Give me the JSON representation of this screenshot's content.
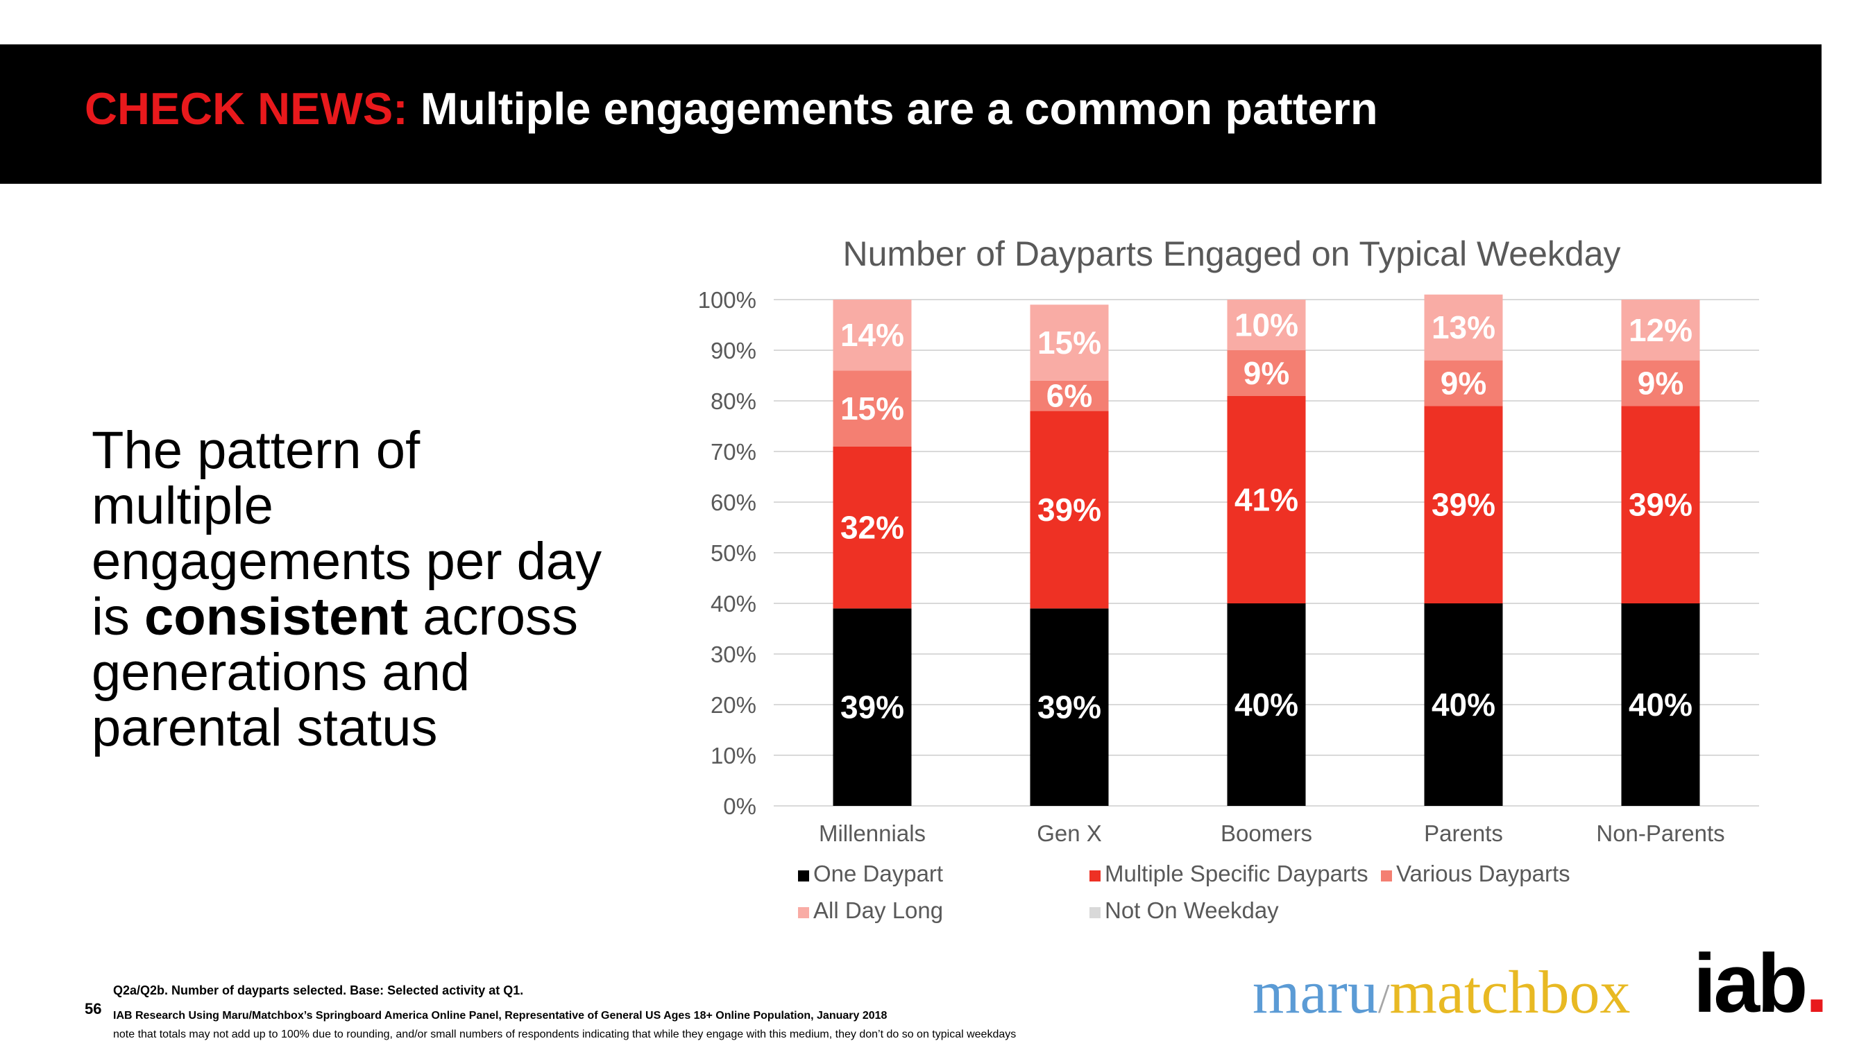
{
  "header": {
    "accent": "CHECK NEWS:",
    "title": " Multiple engagements are a common pattern"
  },
  "takeaway": {
    "before": "The pattern of multiple engagements per day is ",
    "emphasis": "consistent",
    "after": " across generations and parental status"
  },
  "footer": {
    "page_number": "56",
    "note1": "Q2a/Q2b. Number of dayparts selected. Base: Selected activity at Q1.",
    "note2": "IAB Research Using Maru/Matchbox’s Springboard America Online Panel, Representative of General US Ages 18+ Online Population, January 2018",
    "note3": "note that totals may not add up to 100% due to rounding, and/or small numbers of respondents indicating that while they engage with this medium, they don’t do so on typical weekdays"
  },
  "logos": {
    "maru": "maru",
    "slash": "/",
    "matchbox": "matchbox",
    "iab": "iab",
    "iab_dot": "."
  },
  "chart_data": {
    "type": "bar",
    "stacked": true,
    "title": "Number of Dayparts Engaged on Typical Weekday",
    "categories": [
      "Millennials",
      "Gen X",
      "Boomers",
      "Parents",
      "Non-Parents"
    ],
    "ylim": [
      0,
      100
    ],
    "yticks": [
      "0%",
      "10%",
      "20%",
      "30%",
      "40%",
      "50%",
      "60%",
      "70%",
      "80%",
      "90%",
      "100%"
    ],
    "grid": true,
    "legend_position": "bottom",
    "series": [
      {
        "name": "One Daypart",
        "color": "#000000",
        "values": [
          39,
          39,
          40,
          40,
          40
        ],
        "labels": [
          "39%",
          "39%",
          "40%",
          "40%",
          "40%"
        ]
      },
      {
        "name": "Multiple Specific Dayparts",
        "color": "#ee3124",
        "values": [
          32,
          39,
          41,
          39,
          39
        ],
        "labels": [
          "32%",
          "39%",
          "41%",
          "39%",
          "39%"
        ]
      },
      {
        "name": "Various Dayparts",
        "color": "#f47f72",
        "values": [
          15,
          6,
          9,
          9,
          9
        ],
        "labels": [
          "15%",
          "6%",
          "9%",
          "9%",
          "9%"
        ]
      },
      {
        "name": "All Day Long",
        "color": "#f9aca5",
        "values": [
          14,
          15,
          10,
          13,
          12
        ],
        "labels": [
          "14%",
          "15%",
          "10%",
          "13%",
          "12%"
        ]
      },
      {
        "name": "Not On Weekday",
        "color": "#d9d9d9",
        "values": [
          0,
          0,
          0,
          0,
          0
        ],
        "labels": [
          "",
          "",
          "",
          "",
          ""
        ]
      }
    ]
  }
}
